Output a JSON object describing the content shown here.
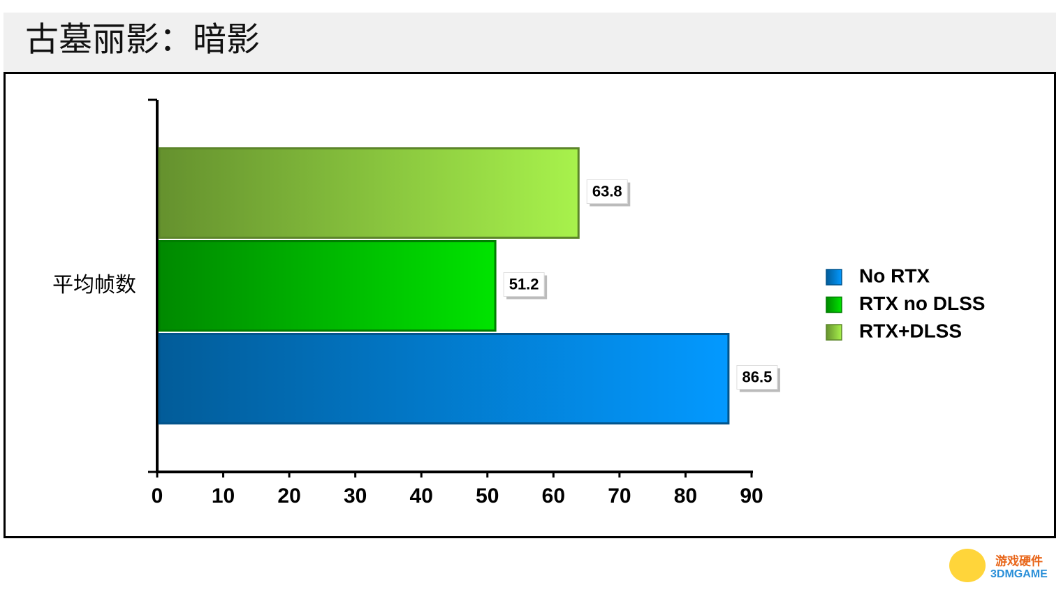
{
  "title": "古墓丽影：暗影",
  "chart_data": {
    "type": "hbar",
    "categories": [
      "平均帧数"
    ],
    "series": [
      {
        "name": "No RTX",
        "color": "#0399ff",
        "values": [
          86.5
        ]
      },
      {
        "name": "RTX no DLSS",
        "color": "#00e400",
        "values": [
          51.2
        ]
      },
      {
        "name": "RTX+DLSS",
        "color": "#a8f24c",
        "values": [
          63.8
        ]
      }
    ],
    "xlim": [
      0,
      90
    ],
    "xticks": [
      0,
      10,
      20,
      30,
      40,
      50,
      60,
      70,
      80,
      90
    ],
    "legend": "right"
  },
  "watermark": [
    "游戏硬件",
    "3DMGAME"
  ]
}
